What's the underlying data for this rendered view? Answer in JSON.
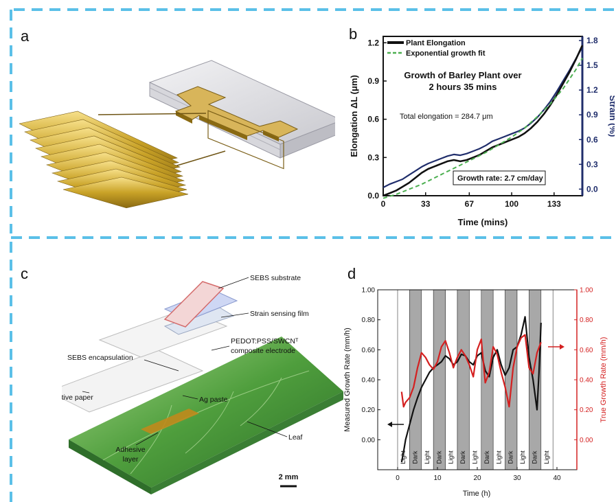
{
  "panels": {
    "a": {
      "letter": "a"
    },
    "b": {
      "letter": "b"
    },
    "c": {
      "letter": "c",
      "labels": {
        "sebs_substrate": "SEBS substrate",
        "strain_sensing_film": "Strain sensing film",
        "pedot_line1": "PEDOT:PSS/SWCNᵀ",
        "pedot_line2": "composite electrode",
        "sebs_encapsulation": "SEBS encapsulation",
        "ag_paste": "Ag paste",
        "ag_conductive_paper": "Ag conductive paper",
        "adhesive_line1": "Adhesive",
        "adhesive_line2": "layer",
        "leaf": "Leaf",
        "scale_bar": "2 mm"
      }
    },
    "d": {
      "letter": "d"
    }
  },
  "colors": {
    "divider": "#5bc0e8",
    "black_series": "#111111",
    "navy_series": "#1f2d6b",
    "fit_green": "#4caf50",
    "red_series": "#d42020",
    "navy_axis": "#1f2d6b",
    "dark_band": "#a8a8a8"
  },
  "chart_data": [
    {
      "id": "b",
      "type": "line",
      "title": "Growth of Barley Plant over 2 hours 35 mins",
      "title_lines": [
        "Growth of Barley Plant over",
        "2 hours 35 mins"
      ],
      "xlabel": "Time (mins)",
      "ylabel": "Elongation ΔL (μm)",
      "ylabel_right": "Strain (%)",
      "xlim": [
        0,
        155
      ],
      "ylim": [
        0,
        1.25
      ],
      "ylim_right": [
        -0.08,
        1.85
      ],
      "xticks": [
        0,
        33,
        67,
        100,
        133
      ],
      "yticks": [
        0.0,
        0.3,
        0.6,
        0.9,
        1.2
      ],
      "yticks_right": [
        0.0,
        0.3,
        0.6,
        0.9,
        1.2,
        1.5,
        1.8
      ],
      "annotations": [
        "Total elongation = 284.7 μm",
        "Growth rate: 2.7 cm/day"
      ],
      "legend": {
        "placement": "top-left",
        "entries": [
          "Plant Elongation",
          "Exponential growth fit"
        ]
      },
      "series": [
        {
          "name": "Plant Elongation",
          "axis": "left",
          "x": [
            0,
            5,
            10,
            15,
            20,
            25,
            30,
            35,
            40,
            45,
            50,
            55,
            60,
            65,
            70,
            75,
            80,
            85,
            90,
            95,
            100,
            105,
            110,
            115,
            120,
            125,
            130,
            135,
            140,
            145,
            150,
            155
          ],
          "y": [
            0.0,
            0.02,
            0.04,
            0.07,
            0.1,
            0.14,
            0.18,
            0.21,
            0.23,
            0.25,
            0.27,
            0.28,
            0.27,
            0.28,
            0.3,
            0.32,
            0.35,
            0.38,
            0.4,
            0.42,
            0.44,
            0.46,
            0.49,
            0.53,
            0.58,
            0.64,
            0.71,
            0.79,
            0.88,
            0.97,
            1.07,
            1.18
          ]
        },
        {
          "name": "Strain",
          "axis": "right",
          "x": [
            0,
            5,
            10,
            15,
            20,
            25,
            30,
            35,
            40,
            45,
            50,
            55,
            60,
            65,
            70,
            75,
            80,
            85,
            90,
            95,
            100,
            105,
            110,
            115,
            120,
            125,
            130,
            135,
            140,
            145,
            150,
            155
          ],
          "y": [
            0.02,
            0.06,
            0.09,
            0.12,
            0.17,
            0.22,
            0.27,
            0.31,
            0.34,
            0.37,
            0.4,
            0.42,
            0.41,
            0.43,
            0.46,
            0.49,
            0.53,
            0.58,
            0.61,
            0.64,
            0.67,
            0.7,
            0.74,
            0.8,
            0.87,
            0.96,
            1.06,
            1.18,
            1.31,
            1.44,
            1.58,
            1.72
          ]
        },
        {
          "name": "Exponential growth fit",
          "axis": "left",
          "style": "dashed",
          "x": [
            0,
            10,
            20,
            30,
            40,
            50,
            60,
            70,
            80,
            90,
            100,
            110,
            120,
            130,
            140,
            150,
            155
          ],
          "y": [
            -0.02,
            0.01,
            0.05,
            0.09,
            0.14,
            0.19,
            0.24,
            0.29,
            0.34,
            0.4,
            0.46,
            0.53,
            0.62,
            0.72,
            0.84,
            0.99,
            1.08
          ]
        }
      ]
    },
    {
      "id": "d",
      "type": "line",
      "xlabel": "Time (h)",
      "ylabel": "Measured Growth Rate (mm/h)",
      "ylabel_right": "True Growth Rate (mm/h)",
      "xlim": [
        -5,
        45
      ],
      "ylim": [
        -0.2,
        1.0
      ],
      "ylim_right": [
        -0.2,
        1.0
      ],
      "xticks": [
        0,
        10,
        20,
        30,
        40
      ],
      "yticks": [
        0.0,
        0.2,
        0.4,
        0.6,
        0.8,
        1.0
      ],
      "yticks_right": [
        0.0,
        0.2,
        0.4,
        0.6,
        0.8,
        1.0
      ],
      "bands": [
        {
          "label": "Light",
          "x0": 0,
          "x1": 3
        },
        {
          "label": "Dark",
          "x0": 3,
          "x1": 6
        },
        {
          "label": "Light",
          "x0": 6,
          "x1": 9
        },
        {
          "label": "Dark",
          "x0": 9,
          "x1": 12
        },
        {
          "label": "Light",
          "x0": 12,
          "x1": 15
        },
        {
          "label": "Dark",
          "x0": 15,
          "x1": 18
        },
        {
          "label": "Light",
          "x0": 18,
          "x1": 21
        },
        {
          "label": "Dark",
          "x0": 21,
          "x1": 24
        },
        {
          "label": "Light",
          "x0": 24,
          "x1": 27
        },
        {
          "label": "Dark",
          "x0": 27,
          "x1": 30
        },
        {
          "label": "Light",
          "x0": 30,
          "x1": 33
        },
        {
          "label": "Dark",
          "x0": 33,
          "x1": 36
        },
        {
          "label": "Light",
          "x0": 36,
          "x1": 39
        }
      ],
      "series": [
        {
          "name": "Measured Growth Rate",
          "axis": "left",
          "x": [
            1.0,
            1.5,
            2,
            3,
            4,
            5,
            6,
            7,
            8,
            9,
            10,
            11,
            12,
            13,
            14,
            15,
            16,
            17,
            18,
            19,
            20,
            21,
            22,
            23,
            24,
            25,
            26,
            27,
            28,
            29,
            30,
            31,
            32,
            33,
            34,
            35,
            35.5,
            36
          ],
          "y": [
            -0.15,
            -0.08,
            0.0,
            0.1,
            0.2,
            0.28,
            0.35,
            0.4,
            0.45,
            0.48,
            0.5,
            0.52,
            0.56,
            0.54,
            0.5,
            0.52,
            0.57,
            0.56,
            0.52,
            0.5,
            0.56,
            0.58,
            0.46,
            0.42,
            0.55,
            0.6,
            0.5,
            0.43,
            0.48,
            0.6,
            0.62,
            0.7,
            0.82,
            0.55,
            0.4,
            0.2,
            0.45,
            0.78
          ]
        },
        {
          "name": "True Growth Rate",
          "axis": "right",
          "x": [
            1,
            1.5,
            2,
            3,
            4,
            5,
            6,
            7,
            8,
            9,
            10,
            11,
            12,
            13,
            14,
            15,
            16,
            17,
            18,
            19,
            20,
            21,
            22,
            23,
            24,
            25,
            26,
            27,
            28,
            29,
            30,
            31,
            32,
            33,
            34,
            35,
            36
          ],
          "y": [
            0.32,
            0.22,
            0.25,
            0.28,
            0.35,
            0.48,
            0.58,
            0.55,
            0.5,
            0.47,
            0.52,
            0.62,
            0.66,
            0.58,
            0.48,
            0.55,
            0.6,
            0.56,
            0.5,
            0.42,
            0.6,
            0.67,
            0.38,
            0.45,
            0.62,
            0.57,
            0.45,
            0.35,
            0.22,
            0.48,
            0.62,
            0.68,
            0.7,
            0.48,
            0.44,
            0.58,
            0.65
          ]
        }
      ]
    }
  ]
}
